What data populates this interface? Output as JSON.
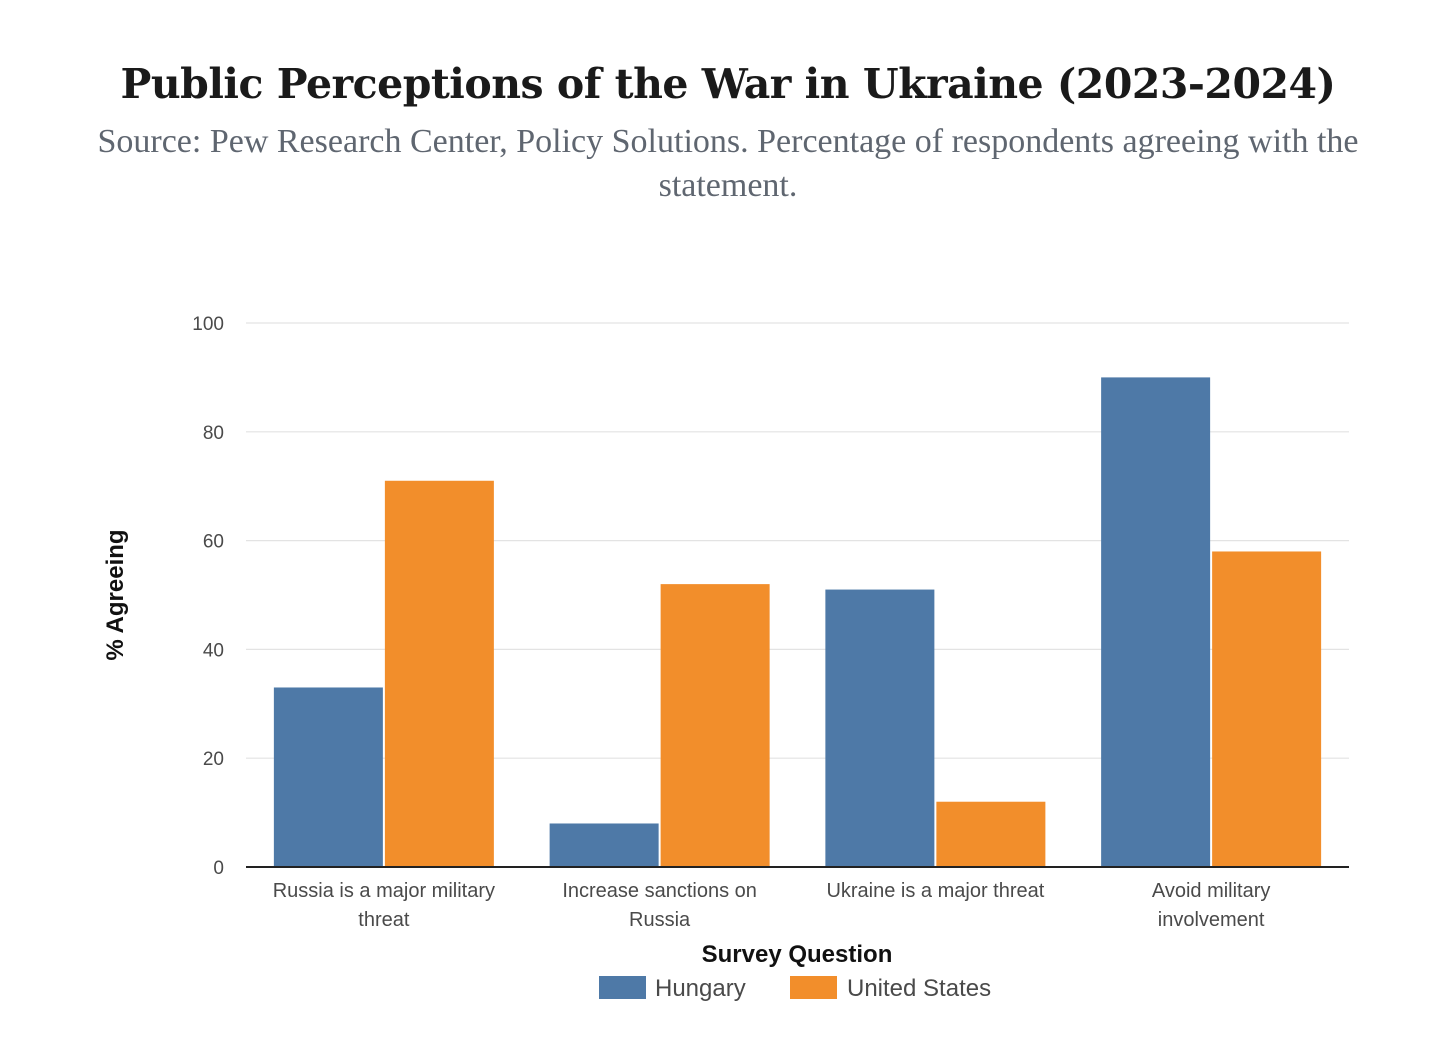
{
  "chart_data": {
    "type": "bar",
    "title": "Public Perceptions of the War in Ukraine (2023-2024)",
    "subtitle": "Source: Pew Research Center, Policy Solutions. Percentage of respondents agreeing with the statement.",
    "xlabel": "Survey Question",
    "ylabel": "% Agreeing",
    "ylim": [
      0,
      100
    ],
    "yticks": [
      0,
      20,
      40,
      60,
      80,
      100
    ],
    "grid": true,
    "legend_position": "bottom",
    "categories": [
      [
        "Russia is a major military",
        "threat"
      ],
      [
        "Increase sanctions on",
        "Russia"
      ],
      [
        "Ukraine is a major threat"
      ],
      [
        "Avoid military",
        "involvement"
      ]
    ],
    "series": [
      {
        "name": "Hungary",
        "color": "#4e79a7",
        "values": [
          33,
          8,
          51,
          90
        ]
      },
      {
        "name": "United States",
        "color": "#f28e2b",
        "values": [
          71,
          52,
          12,
          58
        ]
      }
    ]
  }
}
